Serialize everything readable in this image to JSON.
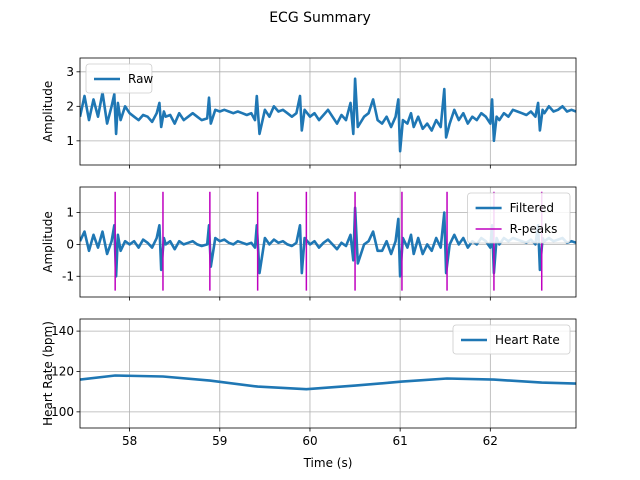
{
  "figure": {
    "title": "ECG Summary"
  },
  "colors": {
    "signal": "#1f77b4",
    "peaks": "#bf00bf",
    "grid": "#b0b0b0"
  },
  "chart_data": [
    {
      "type": "line",
      "ylabel": "Amplitude",
      "xlim": [
        57.45,
        62.95
      ],
      "ylim": [
        0.3,
        3.4
      ],
      "yticks": [
        1,
        2,
        3
      ],
      "grid": true,
      "legend": {
        "placement": "top-left",
        "entries": [
          "Raw"
        ]
      },
      "series": [
        {
          "name": "Raw",
          "x": [
            57.45,
            57.5,
            57.55,
            57.6,
            57.65,
            57.7,
            57.75,
            57.8,
            57.83,
            57.85,
            57.87,
            57.9,
            57.95,
            58.0,
            58.05,
            58.1,
            58.15,
            58.2,
            58.25,
            58.3,
            58.33,
            58.35,
            58.38,
            58.4,
            58.45,
            58.5,
            58.55,
            58.6,
            58.65,
            58.7,
            58.75,
            58.8,
            58.86,
            58.88,
            58.9,
            58.95,
            59.0,
            59.05,
            59.1,
            59.15,
            59.2,
            59.25,
            59.3,
            59.35,
            59.39,
            59.41,
            59.44,
            59.5,
            59.55,
            59.6,
            59.65,
            59.7,
            59.75,
            59.8,
            59.85,
            59.89,
            59.91,
            59.94,
            60.0,
            60.05,
            60.1,
            60.15,
            60.2,
            60.25,
            60.3,
            60.35,
            60.4,
            60.45,
            60.48,
            60.5,
            60.53,
            60.6,
            60.65,
            60.7,
            60.75,
            60.8,
            60.85,
            60.9,
            60.95,
            60.98,
            61.0,
            61.03,
            61.08,
            61.12,
            61.15,
            61.2,
            61.25,
            61.3,
            61.35,
            61.4,
            61.45,
            61.49,
            61.51,
            61.55,
            61.6,
            61.65,
            61.7,
            61.75,
            61.8,
            61.85,
            61.9,
            61.95,
            62.0,
            62.02,
            62.04,
            62.07,
            62.1,
            62.15,
            62.2,
            62.25,
            62.3,
            62.35,
            62.4,
            62.45,
            62.5,
            62.53,
            62.55,
            62.58,
            62.6,
            62.65,
            62.7,
            62.75,
            62.8,
            62.85,
            62.9,
            62.95
          ],
          "values": [
            1.7,
            2.3,
            1.6,
            2.2,
            1.7,
            2.4,
            1.5,
            2.0,
            2.35,
            1.2,
            2.1,
            1.6,
            2.0,
            1.8,
            1.7,
            1.6,
            1.75,
            1.7,
            1.55,
            1.8,
            2.1,
            1.4,
            1.85,
            1.7,
            1.75,
            1.5,
            1.8,
            1.6,
            1.7,
            1.8,
            1.7,
            1.6,
            1.65,
            2.25,
            1.5,
            1.9,
            1.85,
            1.9,
            1.85,
            1.8,
            1.85,
            1.8,
            1.75,
            1.8,
            1.6,
            2.3,
            1.2,
            1.9,
            1.7,
            2.0,
            1.85,
            1.9,
            1.8,
            1.7,
            1.8,
            2.3,
            1.3,
            1.9,
            1.7,
            1.8,
            1.6,
            1.75,
            1.9,
            1.7,
            1.5,
            1.75,
            1.6,
            2.1,
            1.2,
            2.8,
            1.4,
            1.7,
            1.8,
            2.2,
            1.6,
            1.5,
            1.7,
            1.4,
            1.7,
            2.2,
            0.7,
            1.6,
            1.5,
            1.8,
            1.4,
            1.7,
            1.35,
            1.5,
            1.3,
            1.6,
            1.4,
            2.5,
            1.1,
            1.5,
            1.9,
            1.6,
            1.8,
            1.5,
            1.7,
            1.6,
            1.8,
            1.7,
            1.5,
            2.2,
            1.0,
            1.7,
            1.6,
            1.8,
            1.7,
            1.9,
            1.85,
            1.8,
            1.75,
            1.85,
            1.7,
            2.1,
            1.3,
            1.9,
            1.8,
            2.0,
            1.85,
            1.9,
            2.0,
            1.85,
            1.9,
            1.85
          ]
        }
      ]
    },
    {
      "type": "line",
      "ylabel": "Amplitude",
      "xlim": [
        57.45,
        62.95
      ],
      "ylim": [
        -1.65,
        1.8
      ],
      "yticks": [
        -1,
        0,
        1
      ],
      "grid": true,
      "legend": {
        "placement": "top-right",
        "entries": [
          "Filtered",
          "R-peaks"
        ]
      },
      "series": [
        {
          "name": "Filtered",
          "x": [
            57.45,
            57.5,
            57.55,
            57.6,
            57.65,
            57.7,
            57.75,
            57.8,
            57.83,
            57.85,
            57.87,
            57.9,
            57.95,
            58.0,
            58.05,
            58.1,
            58.15,
            58.2,
            58.25,
            58.3,
            58.33,
            58.35,
            58.38,
            58.4,
            58.45,
            58.5,
            58.55,
            58.6,
            58.65,
            58.7,
            58.75,
            58.8,
            58.86,
            58.88,
            58.9,
            58.95,
            59.0,
            59.05,
            59.1,
            59.15,
            59.2,
            59.25,
            59.3,
            59.35,
            59.39,
            59.41,
            59.44,
            59.5,
            59.55,
            59.6,
            59.65,
            59.7,
            59.75,
            59.8,
            59.85,
            59.89,
            59.91,
            59.94,
            60.0,
            60.05,
            60.1,
            60.15,
            60.2,
            60.25,
            60.3,
            60.35,
            60.4,
            60.45,
            60.48,
            60.5,
            60.53,
            60.6,
            60.65,
            60.7,
            60.75,
            60.8,
            60.85,
            60.9,
            60.95,
            60.98,
            61.0,
            61.03,
            61.08,
            61.12,
            61.15,
            61.2,
            61.25,
            61.3,
            61.35,
            61.4,
            61.45,
            61.49,
            61.51,
            61.55,
            61.6,
            61.65,
            61.7,
            61.75,
            61.8,
            61.85,
            61.9,
            61.95,
            62.0,
            62.02,
            62.04,
            62.07,
            62.1,
            62.15,
            62.2,
            62.25,
            62.3,
            62.35,
            62.4,
            62.45,
            62.5,
            62.53,
            62.55,
            62.58,
            62.6,
            62.65,
            62.7,
            62.75,
            62.8,
            62.85,
            62.9,
            62.95
          ],
          "values": [
            0.1,
            0.4,
            -0.2,
            0.3,
            -0.1,
            0.4,
            -0.3,
            0.1,
            0.6,
            -1.0,
            0.3,
            -0.2,
            0.1,
            0.0,
            0.1,
            -0.1,
            0.15,
            0.05,
            -0.1,
            0.2,
            0.6,
            -0.8,
            0.2,
            0.0,
            0.1,
            -0.15,
            0.1,
            0.0,
            0.05,
            0.1,
            0.0,
            -0.05,
            0.0,
            0.6,
            -0.7,
            0.2,
            0.1,
            0.15,
            0.05,
            0.0,
            0.1,
            0.05,
            0.0,
            0.05,
            -0.1,
            0.6,
            -0.9,
            0.2,
            0.0,
            0.15,
            0.05,
            0.1,
            0.0,
            -0.05,
            0.05,
            0.6,
            -0.9,
            0.2,
            0.0,
            0.1,
            -0.1,
            0.05,
            0.15,
            0.0,
            -0.15,
            0.05,
            -0.05,
            0.3,
            -0.5,
            1.15,
            -0.6,
            0.0,
            0.1,
            0.4,
            -0.2,
            -0.2,
            0.1,
            -0.3,
            0.1,
            0.8,
            -1.0,
            0.2,
            -0.1,
            0.3,
            -0.3,
            0.2,
            -0.3,
            0.0,
            -0.2,
            0.2,
            -0.1,
            1.0,
            -0.9,
            0.0,
            0.3,
            0.0,
            0.2,
            -0.1,
            0.1,
            0.0,
            0.2,
            0.1,
            -0.1,
            0.6,
            -0.9,
            0.2,
            0.0,
            0.2,
            0.1,
            0.2,
            0.15,
            0.1,
            0.05,
            0.15,
            0.0,
            0.6,
            -0.8,
            0.2,
            0.1,
            0.2,
            0.1,
            0.15,
            0.2,
            0.05,
            0.1,
            0.05
          ]
        },
        {
          "name": "R-peaks",
          "kind": "vlines",
          "x": [
            57.84,
            58.37,
            58.89,
            59.42,
            59.96,
            60.5,
            61.02,
            61.52,
            62.04,
            62.57
          ],
          "y_from": -1.45,
          "y_to": 1.65
        }
      ]
    },
    {
      "type": "line",
      "ylabel": "Heart Rate (bpm)",
      "xlabel": "Time (s)",
      "xlim": [
        57.45,
        62.95
      ],
      "ylim": [
        92,
        146
      ],
      "yticks": [
        100,
        120,
        140
      ],
      "xticks": [
        58,
        59,
        60,
        61,
        62
      ],
      "grid": true,
      "legend": {
        "placement": "top-right",
        "entries": [
          "Heart Rate"
        ]
      },
      "series": [
        {
          "name": "Heart Rate",
          "x": [
            57.45,
            57.84,
            58.37,
            58.89,
            59.42,
            59.96,
            60.5,
            61.02,
            61.52,
            62.04,
            62.57,
            62.95
          ],
          "values": [
            116,
            118,
            117.5,
            115.5,
            112.5,
            111.2,
            113,
            115,
            116.5,
            116,
            114.5,
            114
          ]
        }
      ]
    }
  ]
}
